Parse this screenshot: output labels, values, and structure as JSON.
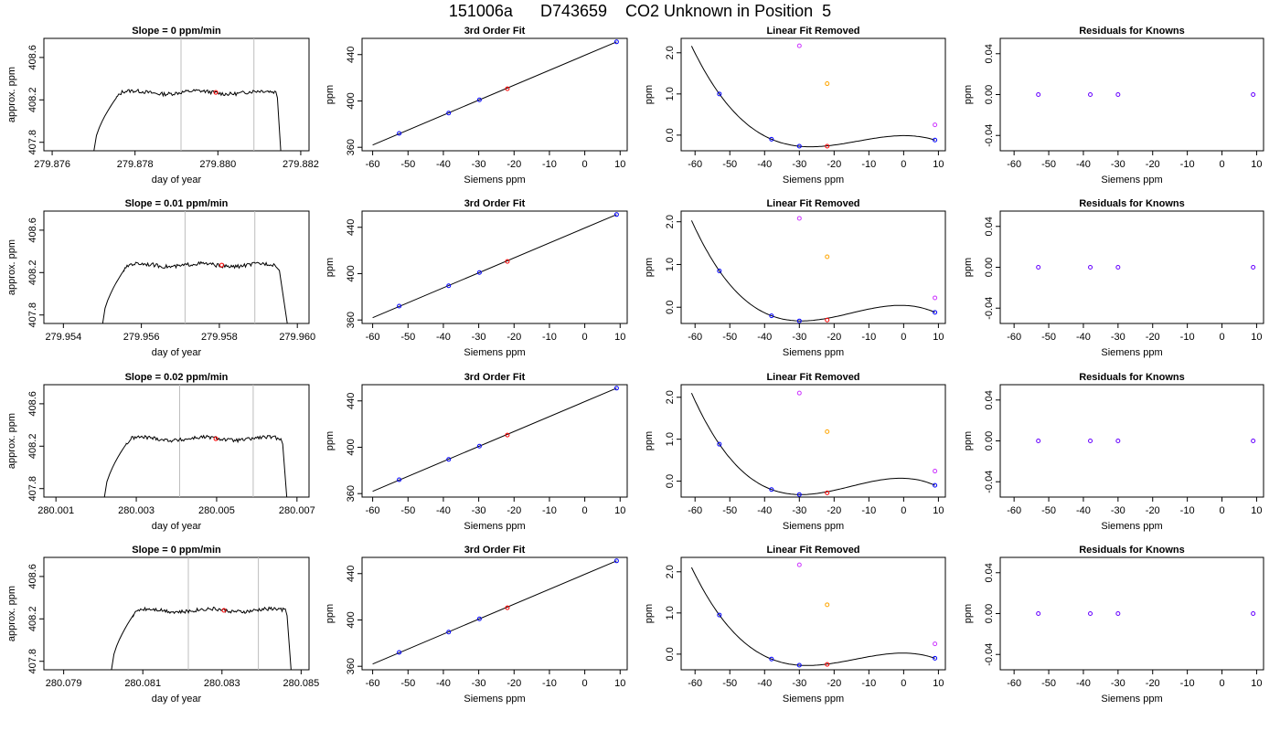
{
  "title": "151006a      D743659    CO2 Unknown in Position  5",
  "chart_data": [
    {
      "id": "r1-raw",
      "type": "line",
      "title": "Slope =  0  ppm/min",
      "xlabel": "day of year",
      "ylabel": "approx. ppm",
      "xlim": [
        279.8758,
        279.8822
      ],
      "xticks": [
        279.876,
        279.878,
        279.88,
        279.882
      ],
      "ytick_labels": [
        "407.8",
        "408.2",
        "408.6"
      ],
      "ylim": [
        407.72,
        408.78
      ],
      "yticks": [
        407.8,
        408.2,
        408.6
      ],
      "start": 279.877,
      "rise_end": 279.87755,
      "flat_start": 279.8777,
      "flat_end": 279.8814,
      "end": 279.88152,
      "level": 408.27,
      "vlines": [
        279.87911,
        279.88087
      ],
      "marker": {
        "x": 279.87995,
        "y": 408.27,
        "color": "#ff0000"
      }
    },
    {
      "id": "r1-fit",
      "type": "line",
      "title": "3rd Order Fit",
      "xlabel": "Siemens ppm",
      "ylabel": "ppm",
      "xlim": [
        -63,
        12
      ],
      "ylim": [
        357,
        454
      ],
      "xticks": [
        -60,
        -50,
        -40,
        -30,
        -20,
        -10,
        0,
        10
      ],
      "yticks": [
        360,
        400,
        440
      ],
      "curve": {
        "kind": "linear",
        "x0": -60,
        "y0": 362,
        "x1": 9,
        "y1": 451
      },
      "points": [
        {
          "x": -52.5,
          "y": 372,
          "color": "#0000ff"
        },
        {
          "x": -38.5,
          "y": 389.5,
          "color": "#0000ff"
        },
        {
          "x": -29.8,
          "y": 401,
          "color": "#0000ff"
        },
        {
          "x": -21.9,
          "y": 410.5,
          "color": "#ff0000"
        },
        {
          "x": 9,
          "y": 451,
          "color": "#0000ff"
        }
      ]
    },
    {
      "id": "r1-lin",
      "type": "line",
      "title": "Linear Fit Removed",
      "xlabel": "Siemens ppm",
      "ylabel": "ppm",
      "xlim": [
        -64,
        12
      ],
      "ylim": [
        -0.38,
        2.35
      ],
      "xticks": [
        -60,
        -50,
        -40,
        -30,
        -20,
        -10,
        0,
        10
      ],
      "yticks": [
        0,
        1,
        2
      ],
      "ytick_labels": [
        "0.0",
        "1.0",
        "2.0"
      ],
      "curve": {
        "kind": "cubic",
        "anchors": [
          {
            "x": -53,
            "y": 1.0
          },
          {
            "x": -38,
            "y": -0.1
          },
          {
            "x": -30,
            "y": -0.27
          },
          {
            "x": 9,
            "y": -0.12
          }
        ],
        "xmin": -61,
        "xmax": 9
      },
      "points": [
        {
          "x": -53,
          "y": 1.0,
          "color": "#0000ff"
        },
        {
          "x": -38,
          "y": -0.1,
          "color": "#0000ff"
        },
        {
          "x": -30,
          "y": -0.27,
          "color": "#0000ff"
        },
        {
          "x": -22,
          "y": -0.27,
          "color": "#ff0000"
        },
        {
          "x": 9,
          "y": -0.12,
          "color": "#0000ff"
        },
        {
          "x": -30,
          "y": 2.17,
          "color": "#cc33ff"
        },
        {
          "x": -22,
          "y": 1.25,
          "color": "#ffa500"
        },
        {
          "x": 9,
          "y": 0.25,
          "color": "#cc33ff"
        }
      ]
    },
    {
      "id": "r1-res",
      "type": "scatter",
      "title": "Residuals for Knowns",
      "xlabel": "Siemens ppm",
      "ylabel": "ppm",
      "xlim": [
        -64,
        12
      ],
      "ylim": [
        -0.055,
        0.055
      ],
      "xticks": [
        -60,
        -50,
        -40,
        -30,
        -20,
        -10,
        0,
        10
      ],
      "yticks": [
        -0.04,
        0,
        0.04
      ],
      "ytick_labels": [
        "-0.04",
        "0.00",
        "0.04"
      ],
      "points": [
        {
          "x": -53,
          "y": 0,
          "color": "#6600ff"
        },
        {
          "x": -38,
          "y": 0,
          "color": "#6600ff"
        },
        {
          "x": -30,
          "y": 0,
          "color": "#6600ff"
        },
        {
          "x": 9,
          "y": 0,
          "color": "#6600ff"
        }
      ]
    },
    {
      "id": "r2-raw",
      "type": "line",
      "title": "Slope =  0.01  ppm/min",
      "xlabel": "day of year",
      "ylabel": "approx. ppm",
      "xlim": [
        279.9535,
        279.9603
      ],
      "xticks": [
        279.954,
        279.956,
        279.958,
        279.96
      ],
      "ytick_labels": [
        "407.8",
        "408.2",
        "408.6"
      ],
      "ylim": [
        407.72,
        408.78
      ],
      "yticks": [
        407.8,
        408.2,
        408.6
      ],
      "start": 279.955,
      "rise_end": 279.95555,
      "flat_start": 279.9557,
      "flat_end": 279.95945,
      "end": 279.95975,
      "level": 408.27,
      "vlines": [
        279.95712,
        279.95891
      ],
      "marker": {
        "x": 279.95806,
        "y": 408.27,
        "color": "#ff0000"
      }
    },
    {
      "id": "r2-fit",
      "type": "line",
      "title": "3rd Order Fit",
      "xlabel": "Siemens ppm",
      "ylabel": "ppm",
      "xlim": [
        -63,
        12
      ],
      "ylim": [
        357,
        454
      ],
      "xticks": [
        -60,
        -50,
        -40,
        -30,
        -20,
        -10,
        0,
        10
      ],
      "yticks": [
        360,
        400,
        440
      ],
      "curve": {
        "kind": "linear",
        "x0": -60,
        "y0": 362,
        "x1": 9,
        "y1": 451
      },
      "points": [
        {
          "x": -52.5,
          "y": 372,
          "color": "#0000ff"
        },
        {
          "x": -38.5,
          "y": 389.5,
          "color": "#0000ff"
        },
        {
          "x": -29.8,
          "y": 401,
          "color": "#0000ff"
        },
        {
          "x": -21.9,
          "y": 410.5,
          "color": "#ff0000"
        },
        {
          "x": 9,
          "y": 451,
          "color": "#0000ff"
        }
      ]
    },
    {
      "id": "r2-lin",
      "type": "line",
      "title": "Linear Fit Removed",
      "xlabel": "Siemens ppm",
      "ylabel": "ppm",
      "xlim": [
        -64,
        12
      ],
      "ylim": [
        -0.38,
        2.25
      ],
      "xticks": [
        -60,
        -50,
        -40,
        -30,
        -20,
        -10,
        0,
        10
      ],
      "yticks": [
        0,
        1,
        2
      ],
      "ytick_labels": [
        "0.0",
        "1.0",
        "2.0"
      ],
      "curve": {
        "kind": "cubic",
        "anchors": [
          {
            "x": -53,
            "y": 0.85
          },
          {
            "x": -38,
            "y": -0.2
          },
          {
            "x": -30,
            "y": -0.32
          },
          {
            "x": 9,
            "y": -0.12
          }
        ],
        "xmin": -61,
        "xmax": 9
      },
      "points": [
        {
          "x": -53,
          "y": 0.85,
          "color": "#0000ff"
        },
        {
          "x": -38,
          "y": -0.2,
          "color": "#0000ff"
        },
        {
          "x": -30,
          "y": -0.32,
          "color": "#0000ff"
        },
        {
          "x": -22,
          "y": -0.3,
          "color": "#ff0000"
        },
        {
          "x": 9,
          "y": -0.12,
          "color": "#0000ff"
        },
        {
          "x": -30,
          "y": 2.08,
          "color": "#cc33ff"
        },
        {
          "x": -22,
          "y": 1.18,
          "color": "#ffa500"
        },
        {
          "x": 9,
          "y": 0.22,
          "color": "#cc33ff"
        }
      ]
    },
    {
      "id": "r2-res",
      "type": "scatter",
      "title": "Residuals for Knowns",
      "xlabel": "Siemens ppm",
      "ylabel": "ppm",
      "xlim": [
        -64,
        12
      ],
      "ylim": [
        -0.055,
        0.055
      ],
      "xticks": [
        -60,
        -50,
        -40,
        -30,
        -20,
        -10,
        0,
        10
      ],
      "yticks": [
        -0.04,
        0,
        0.04
      ],
      "ytick_labels": [
        "-0.04",
        "0.00",
        "0.04"
      ],
      "points": [
        {
          "x": -53,
          "y": 0,
          "color": "#6600ff"
        },
        {
          "x": -38,
          "y": 0,
          "color": "#6600ff"
        },
        {
          "x": -30,
          "y": 0,
          "color": "#6600ff"
        },
        {
          "x": 9,
          "y": 0,
          "color": "#6600ff"
        }
      ]
    },
    {
      "id": "r3-raw",
      "type": "line",
      "title": "Slope =  0.02  ppm/min",
      "xlabel": "day of year",
      "ylabel": "approx. ppm",
      "xlim": [
        280.0007,
        280.0073
      ],
      "xticks": [
        280.001,
        280.003,
        280.005,
        280.007
      ],
      "ytick_labels": [
        "407.8",
        "408.2",
        "408.6"
      ],
      "ylim": [
        407.72,
        408.78
      ],
      "yticks": [
        407.8,
        408.2,
        408.6
      ],
      "start": 280.0022,
      "rise_end": 280.00275,
      "flat_start": 280.0029,
      "flat_end": 280.0066,
      "end": 280.00675,
      "level": 408.27,
      "vlines": [
        280.00408,
        280.00591
      ],
      "marker": {
        "x": 280.00498,
        "y": 408.27,
        "color": "#ff0000"
      }
    },
    {
      "id": "r3-fit",
      "type": "line",
      "title": "3rd Order Fit",
      "xlabel": "Siemens ppm",
      "ylabel": "ppm",
      "xlim": [
        -63,
        12
      ],
      "ylim": [
        357,
        454
      ],
      "xticks": [
        -60,
        -50,
        -40,
        -30,
        -20,
        -10,
        0,
        10
      ],
      "yticks": [
        360,
        400,
        440
      ],
      "curve": {
        "kind": "linear",
        "x0": -60,
        "y0": 362,
        "x1": 9,
        "y1": 451
      },
      "points": [
        {
          "x": -52.5,
          "y": 372,
          "color": "#0000ff"
        },
        {
          "x": -38.5,
          "y": 389.5,
          "color": "#0000ff"
        },
        {
          "x": -29.8,
          "y": 401,
          "color": "#0000ff"
        },
        {
          "x": -21.9,
          "y": 410.5,
          "color": "#ff0000"
        },
        {
          "x": 9,
          "y": 451,
          "color": "#0000ff"
        }
      ]
    },
    {
      "id": "r3-lin",
      "type": "line",
      "title": "Linear Fit Removed",
      "xlabel": "Siemens ppm",
      "ylabel": "ppm",
      "xlim": [
        -64,
        12
      ],
      "ylim": [
        -0.38,
        2.3
      ],
      "xticks": [
        -60,
        -50,
        -40,
        -30,
        -20,
        -10,
        0,
        10
      ],
      "yticks": [
        0,
        1,
        2
      ],
      "ytick_labels": [
        "0.0",
        "1.0",
        "2.0"
      ],
      "curve": {
        "kind": "cubic",
        "anchors": [
          {
            "x": -53,
            "y": 0.88
          },
          {
            "x": -38,
            "y": -0.2
          },
          {
            "x": -30,
            "y": -0.32
          },
          {
            "x": 9,
            "y": -0.1
          }
        ],
        "xmin": -61,
        "xmax": 9
      },
      "points": [
        {
          "x": -53,
          "y": 0.88,
          "color": "#0000ff"
        },
        {
          "x": -38,
          "y": -0.2,
          "color": "#0000ff"
        },
        {
          "x": -30,
          "y": -0.32,
          "color": "#0000ff"
        },
        {
          "x": -22,
          "y": -0.28,
          "color": "#ff0000"
        },
        {
          "x": 9,
          "y": -0.1,
          "color": "#0000ff"
        },
        {
          "x": -30,
          "y": 2.1,
          "color": "#cc33ff"
        },
        {
          "x": -22,
          "y": 1.18,
          "color": "#ffa500"
        },
        {
          "x": 9,
          "y": 0.24,
          "color": "#cc33ff"
        }
      ]
    },
    {
      "id": "r3-res",
      "type": "scatter",
      "title": "Residuals for Knowns",
      "xlabel": "Siemens ppm",
      "ylabel": "ppm",
      "xlim": [
        -64,
        12
      ],
      "ylim": [
        -0.055,
        0.055
      ],
      "xticks": [
        -60,
        -50,
        -40,
        -30,
        -20,
        -10,
        0,
        10
      ],
      "yticks": [
        -0.04,
        0,
        0.04
      ],
      "ytick_labels": [
        "-0.04",
        "0.00",
        "0.04"
      ],
      "points": [
        {
          "x": -53,
          "y": 0,
          "color": "#6600ff"
        },
        {
          "x": -38,
          "y": 0,
          "color": "#6600ff"
        },
        {
          "x": -30,
          "y": 0,
          "color": "#6600ff"
        },
        {
          "x": 9,
          "y": 0,
          "color": "#6600ff"
        }
      ]
    },
    {
      "id": "r4-raw",
      "type": "line",
      "title": "Slope =  0  ppm/min",
      "xlabel": "day of year",
      "ylabel": "approx. ppm",
      "xlim": [
        280.0785,
        280.0852
      ],
      "xticks": [
        280.079,
        280.081,
        280.083,
        280.085
      ],
      "ytick_labels": [
        "407.8",
        "408.2",
        "408.6"
      ],
      "ylim": [
        407.72,
        408.78
      ],
      "yticks": [
        407.8,
        408.2,
        408.6
      ],
      "start": 280.0802,
      "rise_end": 280.08075,
      "flat_start": 280.0809,
      "flat_end": 280.0846,
      "end": 280.08475,
      "level": 408.28,
      "vlines": [
        280.08215,
        280.08392
      ],
      "marker": {
        "x": 280.08305,
        "y": 408.28,
        "color": "#ff0000"
      }
    },
    {
      "id": "r4-fit",
      "type": "line",
      "title": "3rd Order Fit",
      "xlabel": "Siemens ppm",
      "ylabel": "ppm",
      "xlim": [
        -63,
        12
      ],
      "ylim": [
        357,
        454
      ],
      "xticks": [
        -60,
        -50,
        -40,
        -30,
        -20,
        -10,
        0,
        10
      ],
      "yticks": [
        360,
        400,
        440
      ],
      "curve": {
        "kind": "linear",
        "x0": -60,
        "y0": 362,
        "x1": 9,
        "y1": 451
      },
      "points": [
        {
          "x": -52.5,
          "y": 372,
          "color": "#0000ff"
        },
        {
          "x": -38.5,
          "y": 389.5,
          "color": "#0000ff"
        },
        {
          "x": -29.8,
          "y": 401,
          "color": "#0000ff"
        },
        {
          "x": -21.9,
          "y": 410.5,
          "color": "#ff0000"
        },
        {
          "x": 9,
          "y": 451,
          "color": "#0000ff"
        }
      ]
    },
    {
      "id": "r4-lin",
      "type": "line",
      "title": "Linear Fit Removed",
      "xlabel": "Siemens ppm",
      "ylabel": "ppm",
      "xlim": [
        -64,
        12
      ],
      "ylim": [
        -0.38,
        2.35
      ],
      "xticks": [
        -60,
        -50,
        -40,
        -30,
        -20,
        -10,
        0,
        10
      ],
      "yticks": [
        0,
        1,
        2
      ],
      "ytick_labels": [
        "0.0",
        "1.0",
        "2.0"
      ],
      "curve": {
        "kind": "cubic",
        "anchors": [
          {
            "x": -53,
            "y": 0.95
          },
          {
            "x": -38,
            "y": -0.12
          },
          {
            "x": -30,
            "y": -0.27
          },
          {
            "x": 9,
            "y": -0.1
          }
        ],
        "xmin": -61,
        "xmax": 9
      },
      "points": [
        {
          "x": -53,
          "y": 0.95,
          "color": "#0000ff"
        },
        {
          "x": -38,
          "y": -0.12,
          "color": "#0000ff"
        },
        {
          "x": -30,
          "y": -0.27,
          "color": "#0000ff"
        },
        {
          "x": -22,
          "y": -0.25,
          "color": "#ff0000"
        },
        {
          "x": 9,
          "y": -0.1,
          "color": "#0000ff"
        },
        {
          "x": -30,
          "y": 2.17,
          "color": "#cc33ff"
        },
        {
          "x": -22,
          "y": 1.2,
          "color": "#ffa500"
        },
        {
          "x": 9,
          "y": 0.25,
          "color": "#cc33ff"
        }
      ]
    },
    {
      "id": "r4-res",
      "type": "scatter",
      "title": "Residuals for Knowns",
      "xlabel": "Siemens ppm",
      "ylabel": "ppm",
      "xlim": [
        -64,
        12
      ],
      "ylim": [
        -0.055,
        0.055
      ],
      "xticks": [
        -60,
        -50,
        -40,
        -30,
        -20,
        -10,
        0,
        10
      ],
      "yticks": [
        -0.04,
        0,
        0.04
      ],
      "ytick_labels": [
        "-0.04",
        "0.00",
        "0.04"
      ],
      "points": [
        {
          "x": -53,
          "y": 0,
          "color": "#6600ff"
        },
        {
          "x": -38,
          "y": 0,
          "color": "#6600ff"
        },
        {
          "x": -30,
          "y": 0,
          "color": "#6600ff"
        },
        {
          "x": 9,
          "y": 0,
          "color": "#6600ff"
        }
      ]
    }
  ]
}
